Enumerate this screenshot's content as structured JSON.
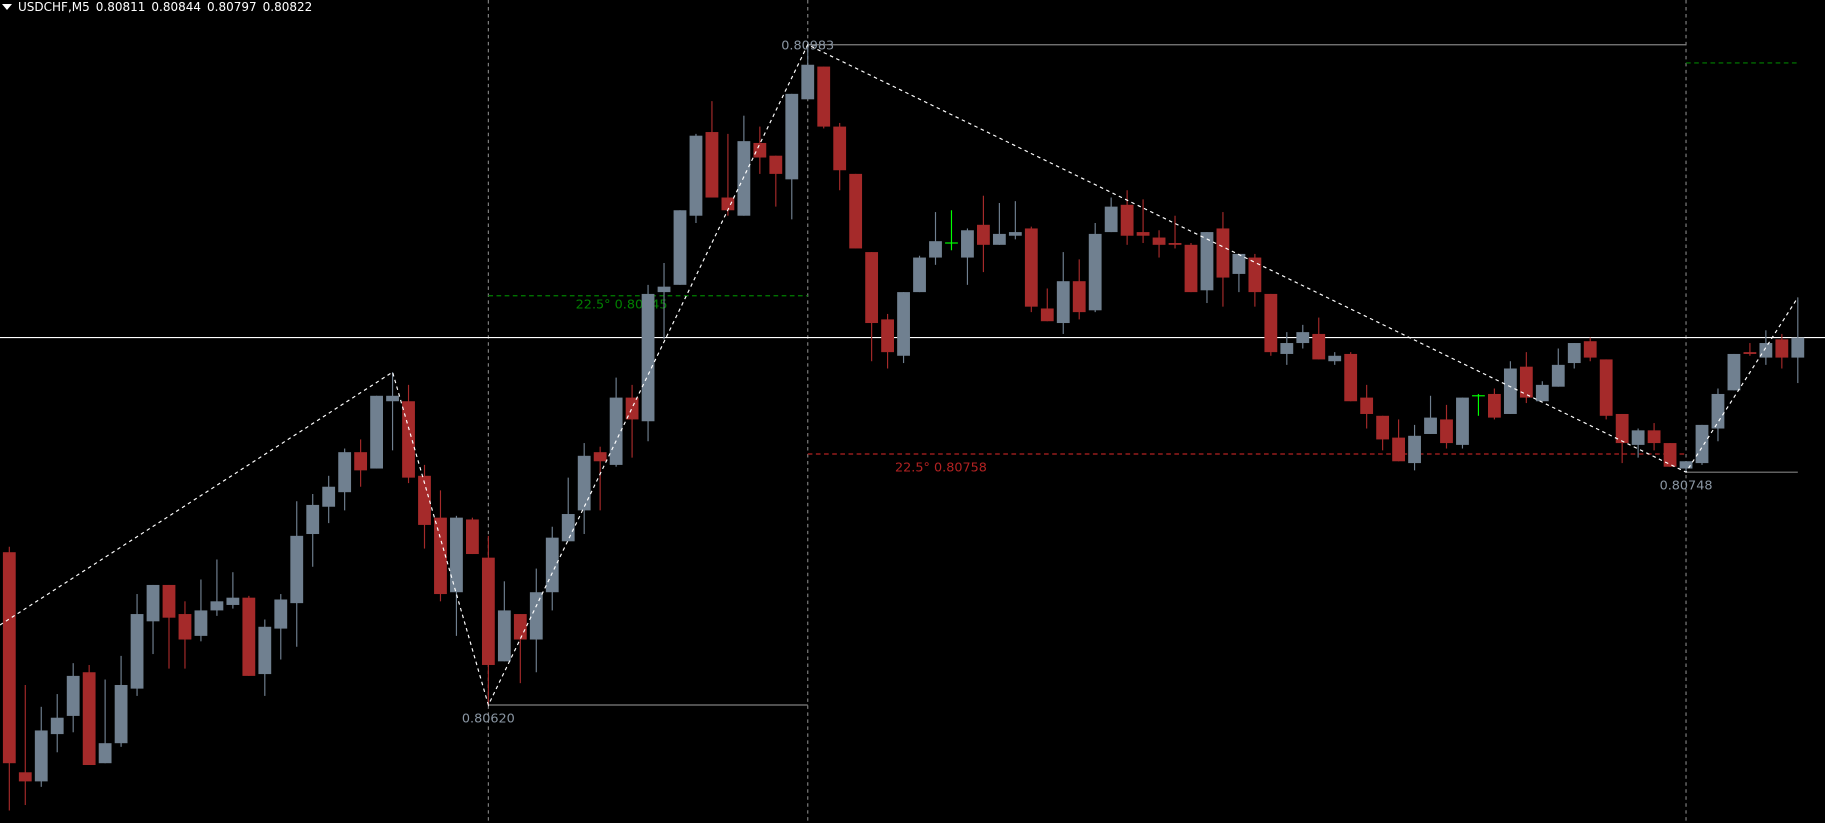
{
  "header": {
    "symbol": "USDCHF,M5",
    "open": "0.80811",
    "high": "0.80844",
    "low": "0.80797",
    "close": "0.80822"
  },
  "chart_data": {
    "type": "candlestick",
    "symbol": "USDCHF",
    "timeframe": "M5",
    "ylim": [
      0.8052,
      0.81015
    ],
    "grid": false,
    "colors": {
      "background": "#000000",
      "bull": "#708090",
      "bear": "#a52a2a",
      "doji": "#00ff00",
      "bid_line": "#ffffff",
      "level": "#808080",
      "zigzag": "#ffffff",
      "green_level": "#008000",
      "red_level": "#b22222"
    },
    "ohlc_fields": [
      "open",
      "high",
      "low",
      "close"
    ],
    "candles": [
      [
        0.80704,
        0.80707,
        0.80562,
        0.80588
      ],
      [
        0.80583,
        0.80631,
        0.80565,
        0.80578
      ],
      [
        0.80578,
        0.80619,
        0.80575,
        0.80606
      ],
      [
        0.80604,
        0.80626,
        0.80594,
        0.80613
      ],
      [
        0.80614,
        0.80643,
        0.80605,
        0.80636
      ],
      [
        0.80638,
        0.80642,
        0.80587,
        0.80587
      ],
      [
        0.80588,
        0.80634,
        0.80588,
        0.80599
      ],
      [
        0.80599,
        0.80647,
        0.80597,
        0.80631
      ],
      [
        0.80629,
        0.80681,
        0.80625,
        0.8067
      ],
      [
        0.80666,
        0.80686,
        0.80648,
        0.80686
      ],
      [
        0.80686,
        0.80686,
        0.8064,
        0.80668
      ],
      [
        0.8067,
        0.80677,
        0.8064,
        0.80656
      ],
      [
        0.80658,
        0.80689,
        0.80655,
        0.80672
      ],
      [
        0.80672,
        0.807,
        0.80669,
        0.80677
      ],
      [
        0.80675,
        0.80693,
        0.80673,
        0.80679
      ],
      [
        0.80679,
        0.8068,
        0.80636,
        0.80636
      ],
      [
        0.80637,
        0.80667,
        0.80625,
        0.80663
      ],
      [
        0.80662,
        0.80681,
        0.80645,
        0.80678
      ],
      [
        0.80676,
        0.80732,
        0.80652,
        0.80713
      ],
      [
        0.80714,
        0.80736,
        0.80696,
        0.8073
      ],
      [
        0.80729,
        0.80746,
        0.8072,
        0.8074
      ],
      [
        0.80737,
        0.80761,
        0.80727,
        0.80759
      ],
      [
        0.80759,
        0.80766,
        0.8074,
        0.80749
      ],
      [
        0.8075,
        0.8079,
        0.8075,
        0.8079
      ],
      [
        0.80787,
        0.80803,
        0.8076,
        0.8079
      ],
      [
        0.80787,
        0.80796,
        0.80742,
        0.80745
      ],
      [
        0.80746,
        0.80752,
        0.80706,
        0.80719
      ],
      [
        0.80723,
        0.80738,
        0.80677,
        0.80681
      ],
      [
        0.80682,
        0.80724,
        0.80658,
        0.80723
      ],
      [
        0.80722,
        0.80723,
        0.80703,
        0.80703
      ],
      [
        0.80701,
        0.80713,
        0.8062,
        0.80642
      ],
      [
        0.80644,
        0.80688,
        0.80644,
        0.80672
      ],
      [
        0.8067,
        0.8067,
        0.80632,
        0.80656
      ],
      [
        0.80656,
        0.80695,
        0.80638,
        0.80682
      ],
      [
        0.80682,
        0.80718,
        0.80672,
        0.80712
      ],
      [
        0.8071,
        0.80745,
        0.8071,
        0.80725
      ],
      [
        0.80727,
        0.80764,
        0.80714,
        0.80757
      ],
      [
        0.80759,
        0.80762,
        0.80727,
        0.80754
      ],
      [
        0.80752,
        0.808,
        0.80751,
        0.80789
      ],
      [
        0.80789,
        0.80796,
        0.80756,
        0.80777
      ],
      [
        0.80776,
        0.80851,
        0.80765,
        0.80846
      ],
      [
        0.80847,
        0.80863,
        0.80821,
        0.8085
      ],
      [
        0.80851,
        0.80892,
        0.80851,
        0.80892
      ],
      [
        0.80889,
        0.80934,
        0.80885,
        0.80933
      ],
      [
        0.80935,
        0.80952,
        0.80899,
        0.80899
      ],
      [
        0.80899,
        0.80934,
        0.80889,
        0.80892
      ],
      [
        0.80889,
        0.80944,
        0.80889,
        0.8093
      ],
      [
        0.80929,
        0.80938,
        0.80912,
        0.80921
      ],
      [
        0.80922,
        0.80922,
        0.80894,
        0.80912
      ],
      [
        0.80909,
        0.80956,
        0.80887,
        0.80956
      ],
      [
        0.80953,
        0.80983,
        0.80953,
        0.80972
      ],
      [
        0.80971,
        0.80971,
        0.80937,
        0.80938
      ],
      [
        0.80938,
        0.8094,
        0.80903,
        0.80914
      ],
      [
        0.80912,
        0.80912,
        0.80871,
        0.80871
      ],
      [
        0.80869,
        0.80869,
        0.80809,
        0.8083
      ],
      [
        0.80832,
        0.80835,
        0.80805,
        0.80814
      ],
      [
        0.80812,
        0.80847,
        0.80808,
        0.80847
      ],
      [
        0.80847,
        0.80867,
        0.80847,
        0.80866
      ],
      [
        0.80866,
        0.80891,
        0.80862,
        0.80875
      ],
      [
        0.80874,
        0.80892,
        0.8087,
        0.80874
      ],
      [
        0.80866,
        0.80882,
        0.80851,
        0.80881
      ],
      [
        0.80884,
        0.809,
        0.80858,
        0.80873
      ],
      [
        0.80873,
        0.80896,
        0.80873,
        0.80879
      ],
      [
        0.80878,
        0.80897,
        0.80876,
        0.8088
      ],
      [
        0.80882,
        0.80883,
        0.80836,
        0.80839
      ],
      [
        0.80838,
        0.80849,
        0.80831,
        0.80831
      ],
      [
        0.8083,
        0.80869,
        0.80824,
        0.80853
      ],
      [
        0.80853,
        0.80865,
        0.80832,
        0.80836
      ],
      [
        0.80837,
        0.80885,
        0.80836,
        0.80879
      ],
      [
        0.8088,
        0.80899,
        0.8088,
        0.80894
      ],
      [
        0.80895,
        0.80903,
        0.80873,
        0.80878
      ],
      [
        0.8088,
        0.80898,
        0.80874,
        0.80878
      ],
      [
        0.80877,
        0.80881,
        0.80866,
        0.80873
      ],
      [
        0.80874,
        0.80889,
        0.80871,
        0.80873
      ],
      [
        0.80873,
        0.80874,
        0.80847,
        0.80847
      ],
      [
        0.80848,
        0.8088,
        0.80841,
        0.8088
      ],
      [
        0.80882,
        0.80891,
        0.80839,
        0.80855
      ],
      [
        0.80857,
        0.80868,
        0.80847,
        0.80868
      ],
      [
        0.80866,
        0.80868,
        0.80839,
        0.80847
      ],
      [
        0.80846,
        0.80846,
        0.80812,
        0.80814
      ],
      [
        0.80813,
        0.80825,
        0.80807,
        0.80819
      ],
      [
        0.80819,
        0.80829,
        0.80816,
        0.80825
      ],
      [
        0.80824,
        0.80833,
        0.8081,
        0.8081
      ],
      [
        0.80809,
        0.80814,
        0.80807,
        0.80812
      ],
      [
        0.80813,
        0.80814,
        0.80787,
        0.80787
      ],
      [
        0.80789,
        0.80796,
        0.80772,
        0.8078
      ],
      [
        0.80779,
        0.80779,
        0.8076,
        0.80766
      ],
      [
        0.80767,
        0.80777,
        0.80754,
        0.80754
      ],
      [
        0.80753,
        0.80774,
        0.80749,
        0.80768
      ],
      [
        0.80769,
        0.8079,
        0.80769,
        0.80778
      ],
      [
        0.80777,
        0.80785,
        0.80761,
        0.80764
      ],
      [
        0.80763,
        0.80789,
        0.80761,
        0.80789
      ],
      [
        0.8079,
        0.80791,
        0.80779,
        0.8079
      ],
      [
        0.80791,
        0.80794,
        0.80777,
        0.80778
      ],
      [
        0.8078,
        0.80809,
        0.8078,
        0.80805
      ],
      [
        0.80806,
        0.80814,
        0.80786,
        0.80789
      ],
      [
        0.80787,
        0.80798,
        0.80787,
        0.80796
      ],
      [
        0.80795,
        0.80816,
        0.80795,
        0.80807
      ],
      [
        0.80808,
        0.80819,
        0.80805,
        0.80819
      ],
      [
        0.8082,
        0.80822,
        0.80809,
        0.80811
      ],
      [
        0.8081,
        0.8081,
        0.80777,
        0.80779
      ],
      [
        0.8078,
        0.8078,
        0.80753,
        0.80764
      ],
      [
        0.80763,
        0.80772,
        0.80756,
        0.80771
      ],
      [
        0.80771,
        0.80775,
        0.8076,
        0.80764
      ],
      [
        0.80764,
        0.80764,
        0.80751,
        0.80751
      ],
      [
        0.8075,
        0.80754,
        0.80748,
        0.80754
      ],
      [
        0.80753,
        0.80774,
        0.80752,
        0.80774
      ],
      [
        0.80772,
        0.80794,
        0.80765,
        0.80791
      ],
      [
        0.80793,
        0.80813,
        0.80793,
        0.80813
      ],
      [
        0.80814,
        0.80819,
        0.80812,
        0.80813
      ],
      [
        0.80811,
        0.80826,
        0.80807,
        0.80819
      ],
      [
        0.80821,
        0.80824,
        0.80805,
        0.80811
      ],
      [
        0.80811,
        0.80844,
        0.80797,
        0.80822
      ]
    ],
    "doji_candles": [
      59,
      92
    ],
    "bid_line": 0.80822,
    "zigzag": [
      {
        "candle": 0,
        "price": 0.80664
      },
      {
        "candle": 24,
        "price": 0.80803
      },
      {
        "candle": 30,
        "price": 0.8062
      },
      {
        "candle": 50,
        "price": 0.80983
      },
      {
        "candle": 105,
        "price": 0.80748
      },
      {
        "candle": 112,
        "price": 0.80844
      }
    ],
    "vertical_markers": [
      30,
      50,
      105
    ],
    "levels": [
      {
        "kind": "swing",
        "from": 50,
        "to": 105,
        "price": 0.80983,
        "label": "0.80983",
        "label_pos": "above-left"
      },
      {
        "kind": "swing",
        "from": 30,
        "to": 50,
        "price": 0.8062,
        "label": "0.80620",
        "label_pos": "below-left"
      },
      {
        "kind": "swing",
        "from": 105,
        "to": 112,
        "price": 0.80748,
        "label": "0.80748",
        "label_pos": "below-left"
      },
      {
        "kind": "green",
        "from": 30,
        "to": 50,
        "price": 0.80845,
        "label": "22.5° 0.80845",
        "label_pos": "below-mid"
      },
      {
        "kind": "red",
        "from": 50,
        "to": 105,
        "price": 0.80758,
        "label": "22.5° 0.80758",
        "label_pos": "below-left"
      },
      {
        "kind": "green",
        "from": 105,
        "to": 112,
        "price": 0.80973,
        "label": "",
        "label_pos": ""
      }
    ]
  }
}
